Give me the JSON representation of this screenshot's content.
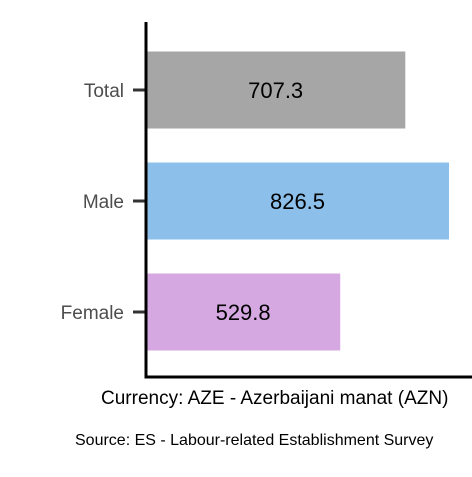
{
  "chart_data": {
    "type": "bar",
    "orientation": "horizontal",
    "categories": [
      "Total",
      "Male",
      "Female"
    ],
    "values": [
      707.3,
      826.5,
      529.8
    ],
    "value_labels": [
      "707.3",
      "826.5",
      "529.8"
    ],
    "colors": [
      "#a6a6a6",
      "#8cbfe9",
      "#d5a8e2"
    ],
    "title": "",
    "xlabel": "Currency: AZE - Azerbaijani manat (AZN)",
    "ylabel": "",
    "xlim": [
      0,
      826.5
    ],
    "grid": false,
    "legend": "none"
  },
  "footer": {
    "source": "Source:  ES - Labour-related Establishment Survey"
  }
}
